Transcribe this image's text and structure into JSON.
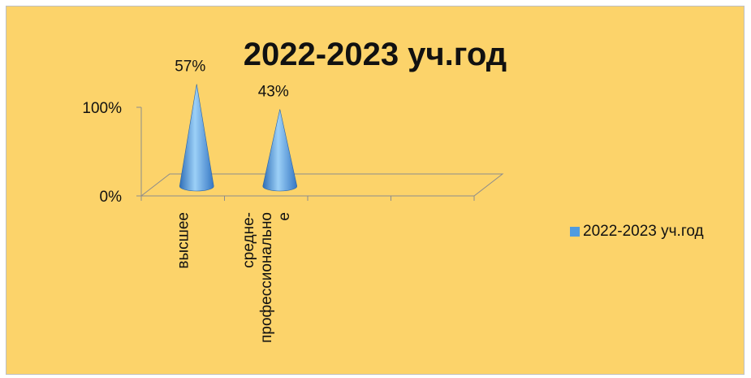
{
  "chart_data": {
    "type": "bar",
    "shape": "cone-3d",
    "title": "2022-2023 уч.год",
    "categories": [
      "высшее",
      "средне-профессионально е"
    ],
    "category_lines": [
      [
        "высшее"
      ],
      [
        "средне-",
        "профессионально",
        "е"
      ]
    ],
    "series": [
      {
        "name": "2022-2023 уч.год",
        "values": [
          0.57,
          0.43
        ],
        "labels": [
          "57%",
          "43%"
        ]
      }
    ],
    "y_ticks": [
      "100%",
      "0%"
    ],
    "ylim": [
      0,
      1
    ],
    "legend_position": "right",
    "grid": false,
    "colors": {
      "background": "#fcd36a",
      "series": "#4f9be0",
      "axis": "#8c8c8c"
    }
  }
}
